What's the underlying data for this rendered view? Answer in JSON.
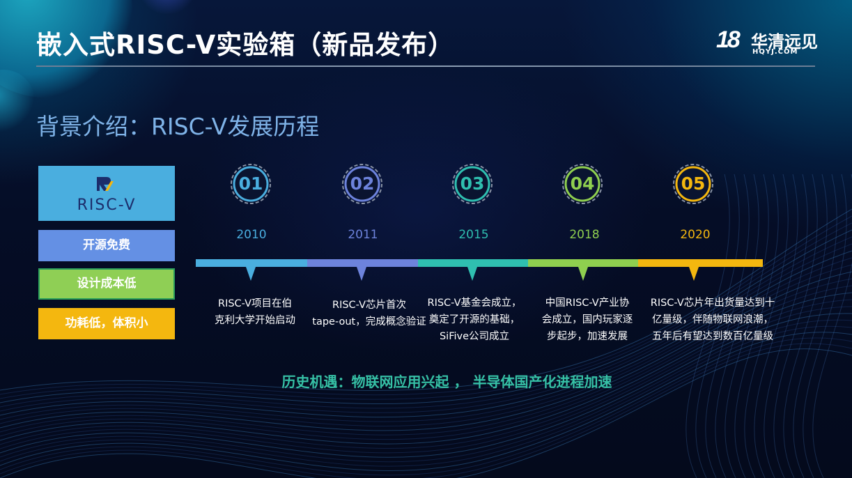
{
  "slide": {
    "title": "嵌入式RISC-V实验箱（新品发布）",
    "subtitle": "背景介绍：RISC-V发展历程",
    "bottom_text": "历史机遇：物联网应用兴起 ， 半导体国产化进程加速"
  },
  "logo": {
    "mark": "18",
    "name": "华清远见",
    "domain": "HQYJ.COM"
  },
  "risc_card": {
    "logo_text": "RISC-V"
  },
  "features": [
    {
      "label": "开源免费",
      "color": "#6490e4"
    },
    {
      "label": "设计成本低",
      "color": "#8fcf55"
    },
    {
      "label": "功耗低，体积小",
      "color": "#f4b70f"
    }
  ],
  "timeline": [
    {
      "num": "01",
      "year": "2010",
      "color": "#4aaedf",
      "desc": [
        "RISC-V项目在伯",
        "克利大学开始启动"
      ]
    },
    {
      "num": "02",
      "year": "2011",
      "color": "#6d83dc",
      "desc": [
        "RISC-V芯片首次",
        "tape-out，完成概念验证"
      ]
    },
    {
      "num": "03",
      "year": "2015",
      "color": "#2fbfb0",
      "desc": [
        "RISC-V基金会成立，",
        "奠定了开源的基础，",
        "SiFive公司成立"
      ]
    },
    {
      "num": "04",
      "year": "2018",
      "color": "#8fcf4f",
      "desc": [
        "中国RISC-V产业协",
        "会成立，国内玩家逐",
        "步起步，加速发展"
      ]
    },
    {
      "num": "05",
      "year": "2020",
      "color": "#f4b70f",
      "desc": [
        "RISC-V芯片年出货量达到十",
        "亿量级，伴随物联网浪潮，",
        "五年后有望达到数百亿量级"
      ]
    }
  ]
}
